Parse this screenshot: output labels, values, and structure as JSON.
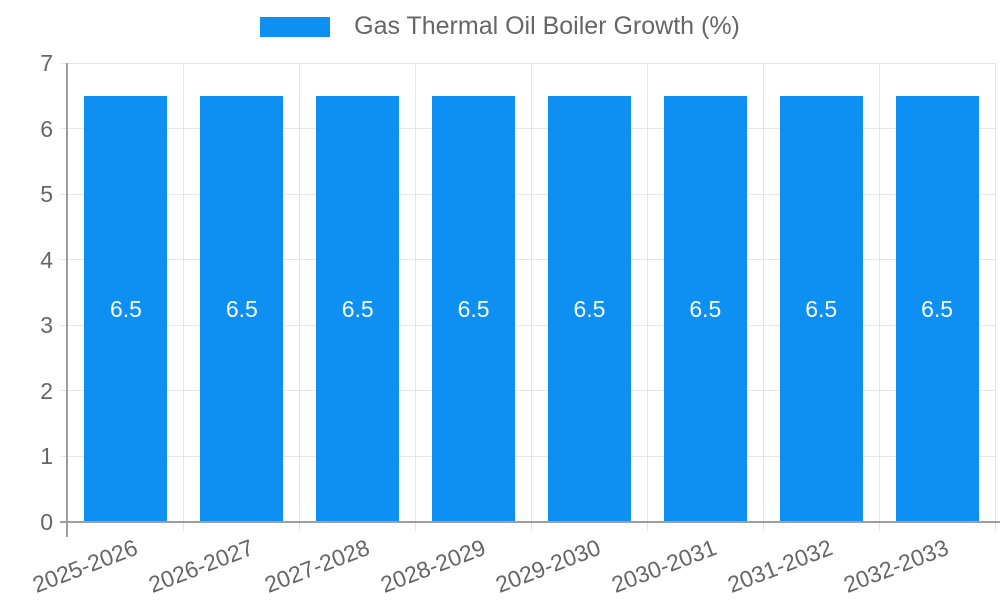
{
  "legend": {
    "label": "Gas Thermal Oil Boiler Growth (%)",
    "swatch_color": "#0d90f2"
  },
  "chart_data": {
    "type": "bar",
    "title": "Gas Thermal Oil Boiler Growth (%)",
    "categories": [
      "2025-2026",
      "2026-2027",
      "2027-2028",
      "2028-2029",
      "2029-2030",
      "2030-2031",
      "2031-2032",
      "2032-2033"
    ],
    "values": [
      6.5,
      6.5,
      6.5,
      6.5,
      6.5,
      6.5,
      6.5,
      6.5
    ],
    "series": [
      {
        "name": "Gas Thermal Oil Boiler Growth (%)",
        "values": [
          6.5,
          6.5,
          6.5,
          6.5,
          6.5,
          6.5,
          6.5,
          6.5
        ]
      }
    ],
    "xlabel": "",
    "ylabel": "",
    "ylim": [
      0,
      7
    ],
    "yticks": [
      0,
      1,
      2,
      3,
      4,
      5,
      6,
      7
    ],
    "grid": true,
    "legend_position": "top",
    "bar_color": "#0d90f2",
    "bar_label_color": "#ffffff",
    "axis_color": "#9e9e9e",
    "grid_color": "#e5e5e5",
    "tick_label_color": "#666666",
    "background_color": "#ffffff"
  }
}
